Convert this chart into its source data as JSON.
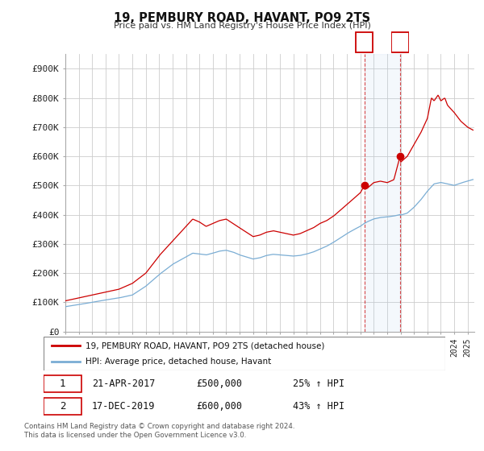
{
  "title": "19, PEMBURY ROAD, HAVANT, PO9 2TS",
  "subtitle": "Price paid vs. HM Land Registry's House Price Index (HPI)",
  "ylabel_ticks": [
    "£0",
    "£100K",
    "£200K",
    "£300K",
    "£400K",
    "£500K",
    "£600K",
    "£700K",
    "£800K",
    "£900K"
  ],
  "ytick_values": [
    0,
    100000,
    200000,
    300000,
    400000,
    500000,
    600000,
    700000,
    800000,
    900000
  ],
  "ylim": [
    0,
    950000
  ],
  "xlim_start": 1995.0,
  "xlim_end": 2025.5,
  "hpi_color": "#7aadd4",
  "price_color": "#cc0000",
  "marker1_x": 2017.3,
  "marker1_y": 500000,
  "marker2_x": 2019.96,
  "marker2_y": 600000,
  "legend_line1": "19, PEMBURY ROAD, HAVANT, PO9 2TS (detached house)",
  "legend_line2": "HPI: Average price, detached house, Havant",
  "table_row1": [
    "1",
    "21-APR-2017",
    "£500,000",
    "25% ↑ HPI"
  ],
  "table_row2": [
    "2",
    "17-DEC-2019",
    "£600,000",
    "43% ↑ HPI"
  ],
  "footer": "Contains HM Land Registry data © Crown copyright and database right 2024.\nThis data is licensed under the Open Government Licence v3.0.",
  "bg_color": "#ffffff",
  "grid_color": "#cccccc"
}
